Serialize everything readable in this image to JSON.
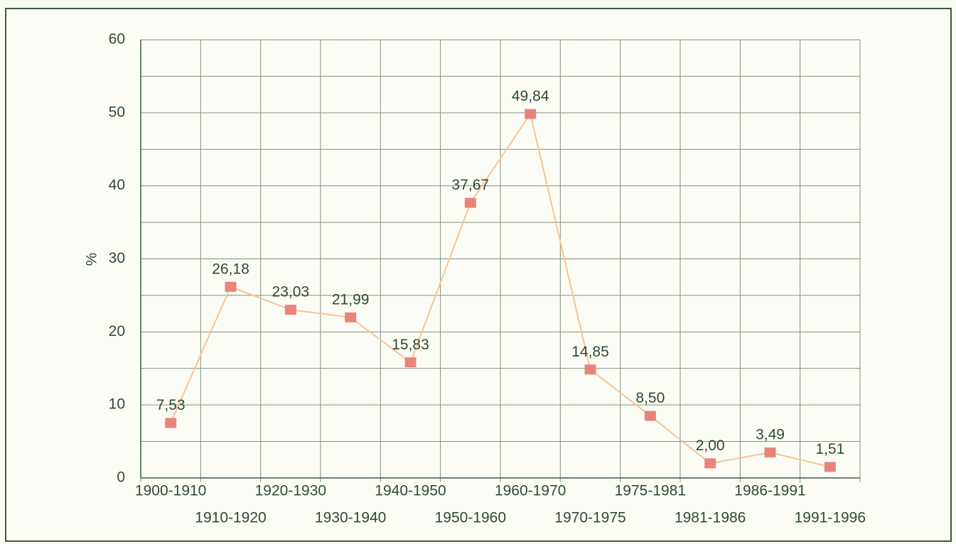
{
  "chart_data": {
    "type": "line",
    "y_label": "%",
    "categories": [
      "1900-1910",
      "1910-1920",
      "1920-1930",
      "1930-1940",
      "1940-1950",
      "1950-1960",
      "1960-1970",
      "1970-1975",
      "1975-1981",
      "1981-1986",
      "1986-1991",
      "1991-1996"
    ],
    "series": [
      {
        "color": "#e8847a",
        "line_color": "#f5c594",
        "values": [
          7.53,
          26.18,
          23.03,
          21.99,
          15.83,
          37.67,
          49.84,
          14.85,
          8.5,
          2.0,
          3.49,
          1.51
        ],
        "value_labels": [
          "7,53",
          "26,18",
          "23,03",
          "21,99",
          "15,83",
          "37,67",
          "49,84",
          "14,85",
          "8,50",
          "2,00",
          "3,49",
          "1,51"
        ]
      }
    ],
    "ylim": [
      0,
      60
    ],
    "yticks": [
      0,
      10,
      20,
      30,
      40,
      50,
      60
    ],
    "grid": true
  }
}
